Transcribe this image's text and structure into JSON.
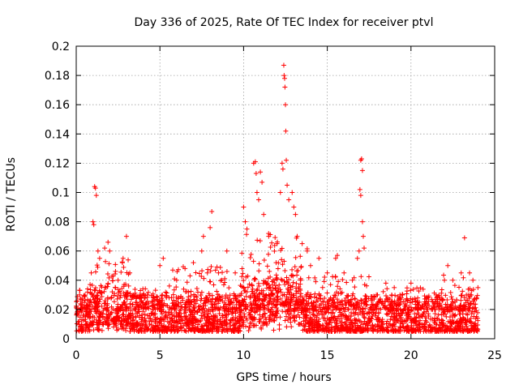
{
  "chart_data": {
    "type": "scatter",
    "title": "Day 336 of 2025, Rate Of TEC Index for receiver ptvl",
    "xlabel": "GPS time / hours",
    "ylabel": "ROTI / TECUs",
    "xlim": [
      0,
      25
    ],
    "ylim": [
      0,
      0.2
    ],
    "xticks": [
      "0",
      "5",
      "10",
      "15",
      "20",
      "25"
    ],
    "yticks": [
      "0",
      "0.02",
      "0.04",
      "0.06",
      "0.08",
      "0.1",
      "0.12",
      "0.14",
      "0.16",
      "0.18",
      "0.2"
    ],
    "grid": true,
    "marker": "plus",
    "color": "#ff0000",
    "x_range_data": [
      0,
      24
    ],
    "baseline_range": [
      0.005,
      0.03
    ],
    "series": [
      {
        "values_note": "",
        "points": [
          [
            0.2,
            0.03
          ],
          [
            0.5,
            0.029
          ],
          [
            0.9,
            0.045
          ],
          [
            1.0,
            0.08
          ],
          [
            1.05,
            0.078
          ],
          [
            1.1,
            0.104
          ],
          [
            1.15,
            0.103
          ],
          [
            1.2,
            0.098
          ],
          [
            1.3,
            0.06
          ],
          [
            1.4,
            0.055
          ],
          [
            1.7,
            0.062
          ],
          [
            1.9,
            0.066
          ],
          [
            2.0,
            0.06
          ],
          [
            2.5,
            0.04
          ],
          [
            2.8,
            0.055
          ],
          [
            3.0,
            0.07
          ],
          [
            3.2,
            0.045
          ],
          [
            4.0,
            0.03
          ],
          [
            5.0,
            0.05
          ],
          [
            5.2,
            0.055
          ],
          [
            6.0,
            0.04
          ],
          [
            6.5,
            0.048
          ],
          [
            7.0,
            0.052
          ],
          [
            7.5,
            0.06
          ],
          [
            7.6,
            0.07
          ],
          [
            8.0,
            0.076
          ],
          [
            8.1,
            0.087
          ],
          [
            8.5,
            0.045
          ],
          [
            9.0,
            0.06
          ],
          [
            9.5,
            0.045
          ],
          [
            10.0,
            0.09
          ],
          [
            10.1,
            0.08
          ],
          [
            10.2,
            0.075
          ],
          [
            10.6,
            0.12
          ],
          [
            10.7,
            0.121
          ],
          [
            10.75,
            0.113
          ],
          [
            10.8,
            0.1
          ],
          [
            10.9,
            0.095
          ],
          [
            11.0,
            0.114
          ],
          [
            11.1,
            0.107
          ],
          [
            11.2,
            0.085
          ],
          [
            11.5,
            0.07
          ],
          [
            12.0,
            0.065
          ],
          [
            12.2,
            0.1
          ],
          [
            12.3,
            0.12
          ],
          [
            12.35,
            0.116
          ],
          [
            12.4,
            0.187
          ],
          [
            12.42,
            0.18
          ],
          [
            12.45,
            0.178
          ],
          [
            12.47,
            0.172
          ],
          [
            12.5,
            0.16
          ],
          [
            12.52,
            0.142
          ],
          [
            12.55,
            0.122
          ],
          [
            12.6,
            0.105
          ],
          [
            12.7,
            0.095
          ],
          [
            12.9,
            0.1
          ],
          [
            13.0,
            0.09
          ],
          [
            13.1,
            0.085
          ],
          [
            13.2,
            0.07
          ],
          [
            13.5,
            0.065
          ],
          [
            13.8,
            0.06
          ],
          [
            14.0,
            0.05
          ],
          [
            14.5,
            0.055
          ],
          [
            15.0,
            0.045
          ],
          [
            15.5,
            0.055
          ],
          [
            15.6,
            0.057
          ],
          [
            16.0,
            0.045
          ],
          [
            16.5,
            0.04
          ],
          [
            16.8,
            0.055
          ],
          [
            16.9,
            0.06
          ],
          [
            16.95,
            0.102
          ],
          [
            17.0,
            0.122
          ],
          [
            17.05,
            0.123
          ],
          [
            17.1,
            0.115
          ],
          [
            17.0,
            0.098
          ],
          [
            17.1,
            0.08
          ],
          [
            17.15,
            0.07
          ],
          [
            17.2,
            0.062
          ],
          [
            18.0,
            0.03
          ],
          [
            18.5,
            0.038
          ],
          [
            19.0,
            0.035
          ],
          [
            19.5,
            0.03
          ],
          [
            20.0,
            0.038
          ],
          [
            20.5,
            0.025
          ],
          [
            21.0,
            0.02
          ],
          [
            21.5,
            0.03
          ],
          [
            22.0,
            0.04
          ],
          [
            22.2,
            0.05
          ],
          [
            22.5,
            0.04
          ],
          [
            23.0,
            0.045
          ],
          [
            23.2,
            0.069
          ],
          [
            23.5,
            0.045
          ],
          [
            23.7,
            0.04
          ],
          [
            24.0,
            0.035
          ]
        ]
      }
    ]
  }
}
